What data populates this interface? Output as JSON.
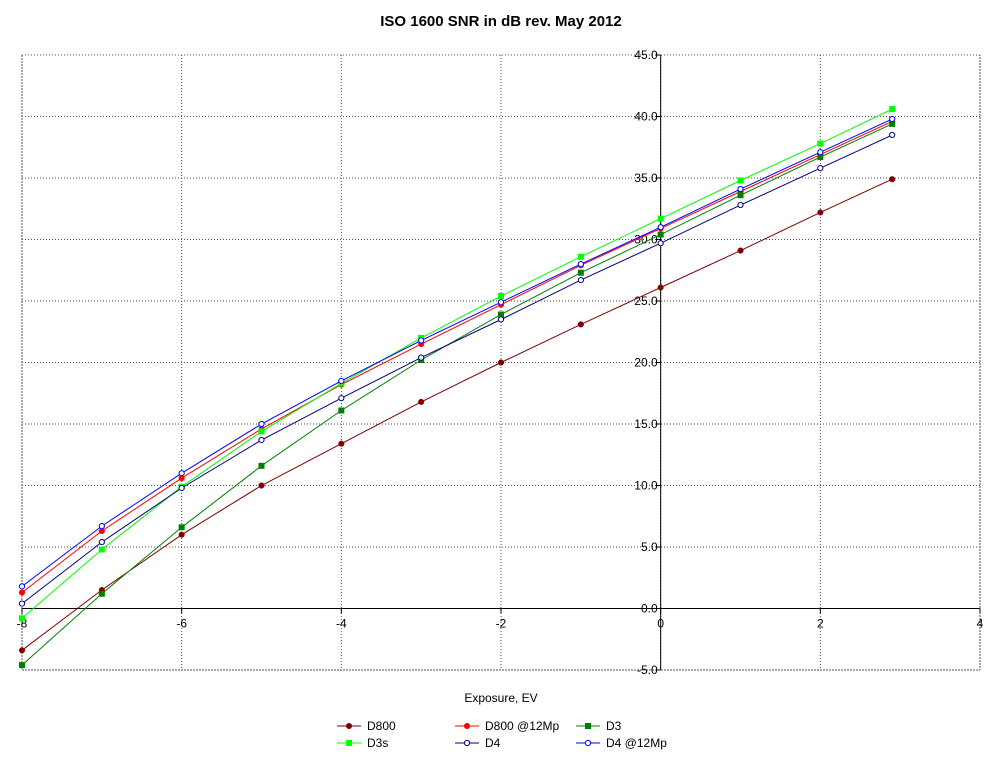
{
  "chart_data": {
    "type": "line",
    "title": "ISO 1600 SNR in dB rev. May 2012",
    "xlabel": "Exposure, EV",
    "ylabel": "",
    "xlim": [
      -8,
      4
    ],
    "ylim": [
      -5,
      45
    ],
    "x_ticks": [
      -8,
      -6,
      -4,
      -2,
      0,
      2,
      4
    ],
    "x_tick_labels": [
      "-8",
      "-6",
      "-4",
      "-2",
      "0",
      "2",
      "4"
    ],
    "y_ticks": [
      -5,
      0,
      5,
      10,
      15,
      20,
      25,
      30,
      35,
      40,
      45
    ],
    "y_tick_labels": [
      "-5.0",
      "0.0",
      "5.0",
      "10.0",
      "15.0",
      "20.0",
      "25.0",
      "30.0",
      "35.0",
      "40.0",
      "45.0"
    ],
    "grid": true,
    "legend_position": "bottom",
    "series": [
      {
        "name": "D800",
        "color": "#800000",
        "marker": "filled-circle",
        "x": [
          -8,
          -7,
          -6,
          -5,
          -4,
          -3,
          -2,
          -1,
          0,
          1,
          2,
          2.9
        ],
        "y": [
          -3.4,
          1.5,
          6.0,
          10.0,
          13.4,
          16.8,
          20.0,
          23.1,
          26.1,
          29.1,
          32.2,
          34.9
        ]
      },
      {
        "name": "D800 @12Mp",
        "color": "#ff0000",
        "marker": "filled-circle",
        "x": [
          -8,
          -7,
          -6,
          -5,
          -4,
          -3,
          -2,
          -1,
          0,
          1,
          2,
          2.9
        ],
        "y": [
          1.3,
          6.3,
          10.6,
          14.6,
          18.2,
          21.5,
          24.7,
          27.9,
          30.9,
          33.9,
          36.9,
          39.6
        ]
      },
      {
        "name": "D3",
        "color": "#008000",
        "marker": "filled-square",
        "x": [
          -8,
          -7,
          -6,
          -5,
          -4,
          -3,
          -2,
          -1,
          0,
          1,
          2,
          2.9
        ],
        "y": [
          -4.6,
          1.2,
          6.6,
          11.6,
          16.1,
          20.2,
          23.9,
          27.3,
          30.4,
          33.6,
          36.7,
          39.4
        ]
      },
      {
        "name": "D3s",
        "color": "#00ff00",
        "marker": "filled-square",
        "x": [
          -8,
          -7,
          -6,
          -5,
          -4,
          -3,
          -2,
          -1,
          0,
          1,
          2,
          2.9
        ],
        "y": [
          -0.8,
          4.8,
          9.9,
          14.4,
          18.3,
          22.0,
          25.4,
          28.6,
          31.7,
          34.8,
          37.8,
          40.6
        ]
      },
      {
        "name": "D4",
        "color": "#000080",
        "marker": "open-circle",
        "x": [
          -8,
          -7,
          -6,
          -5,
          -4,
          -3,
          -2,
          -1,
          0,
          1,
          2,
          2.9
        ],
        "y": [
          0.4,
          5.4,
          9.8,
          13.7,
          17.1,
          20.4,
          23.5,
          26.7,
          29.7,
          32.8,
          35.8,
          38.5
        ]
      },
      {
        "name": "D4 @12Mp",
        "color": "#0000ff",
        "marker": "open-circle",
        "x": [
          -8,
          -7,
          -6,
          -5,
          -4,
          -3,
          -2,
          -1,
          0,
          1,
          2,
          2.9
        ],
        "y": [
          1.8,
          6.7,
          11.0,
          15.0,
          18.5,
          21.8,
          24.9,
          28.0,
          31.0,
          34.1,
          37.1,
          39.8
        ]
      }
    ]
  }
}
